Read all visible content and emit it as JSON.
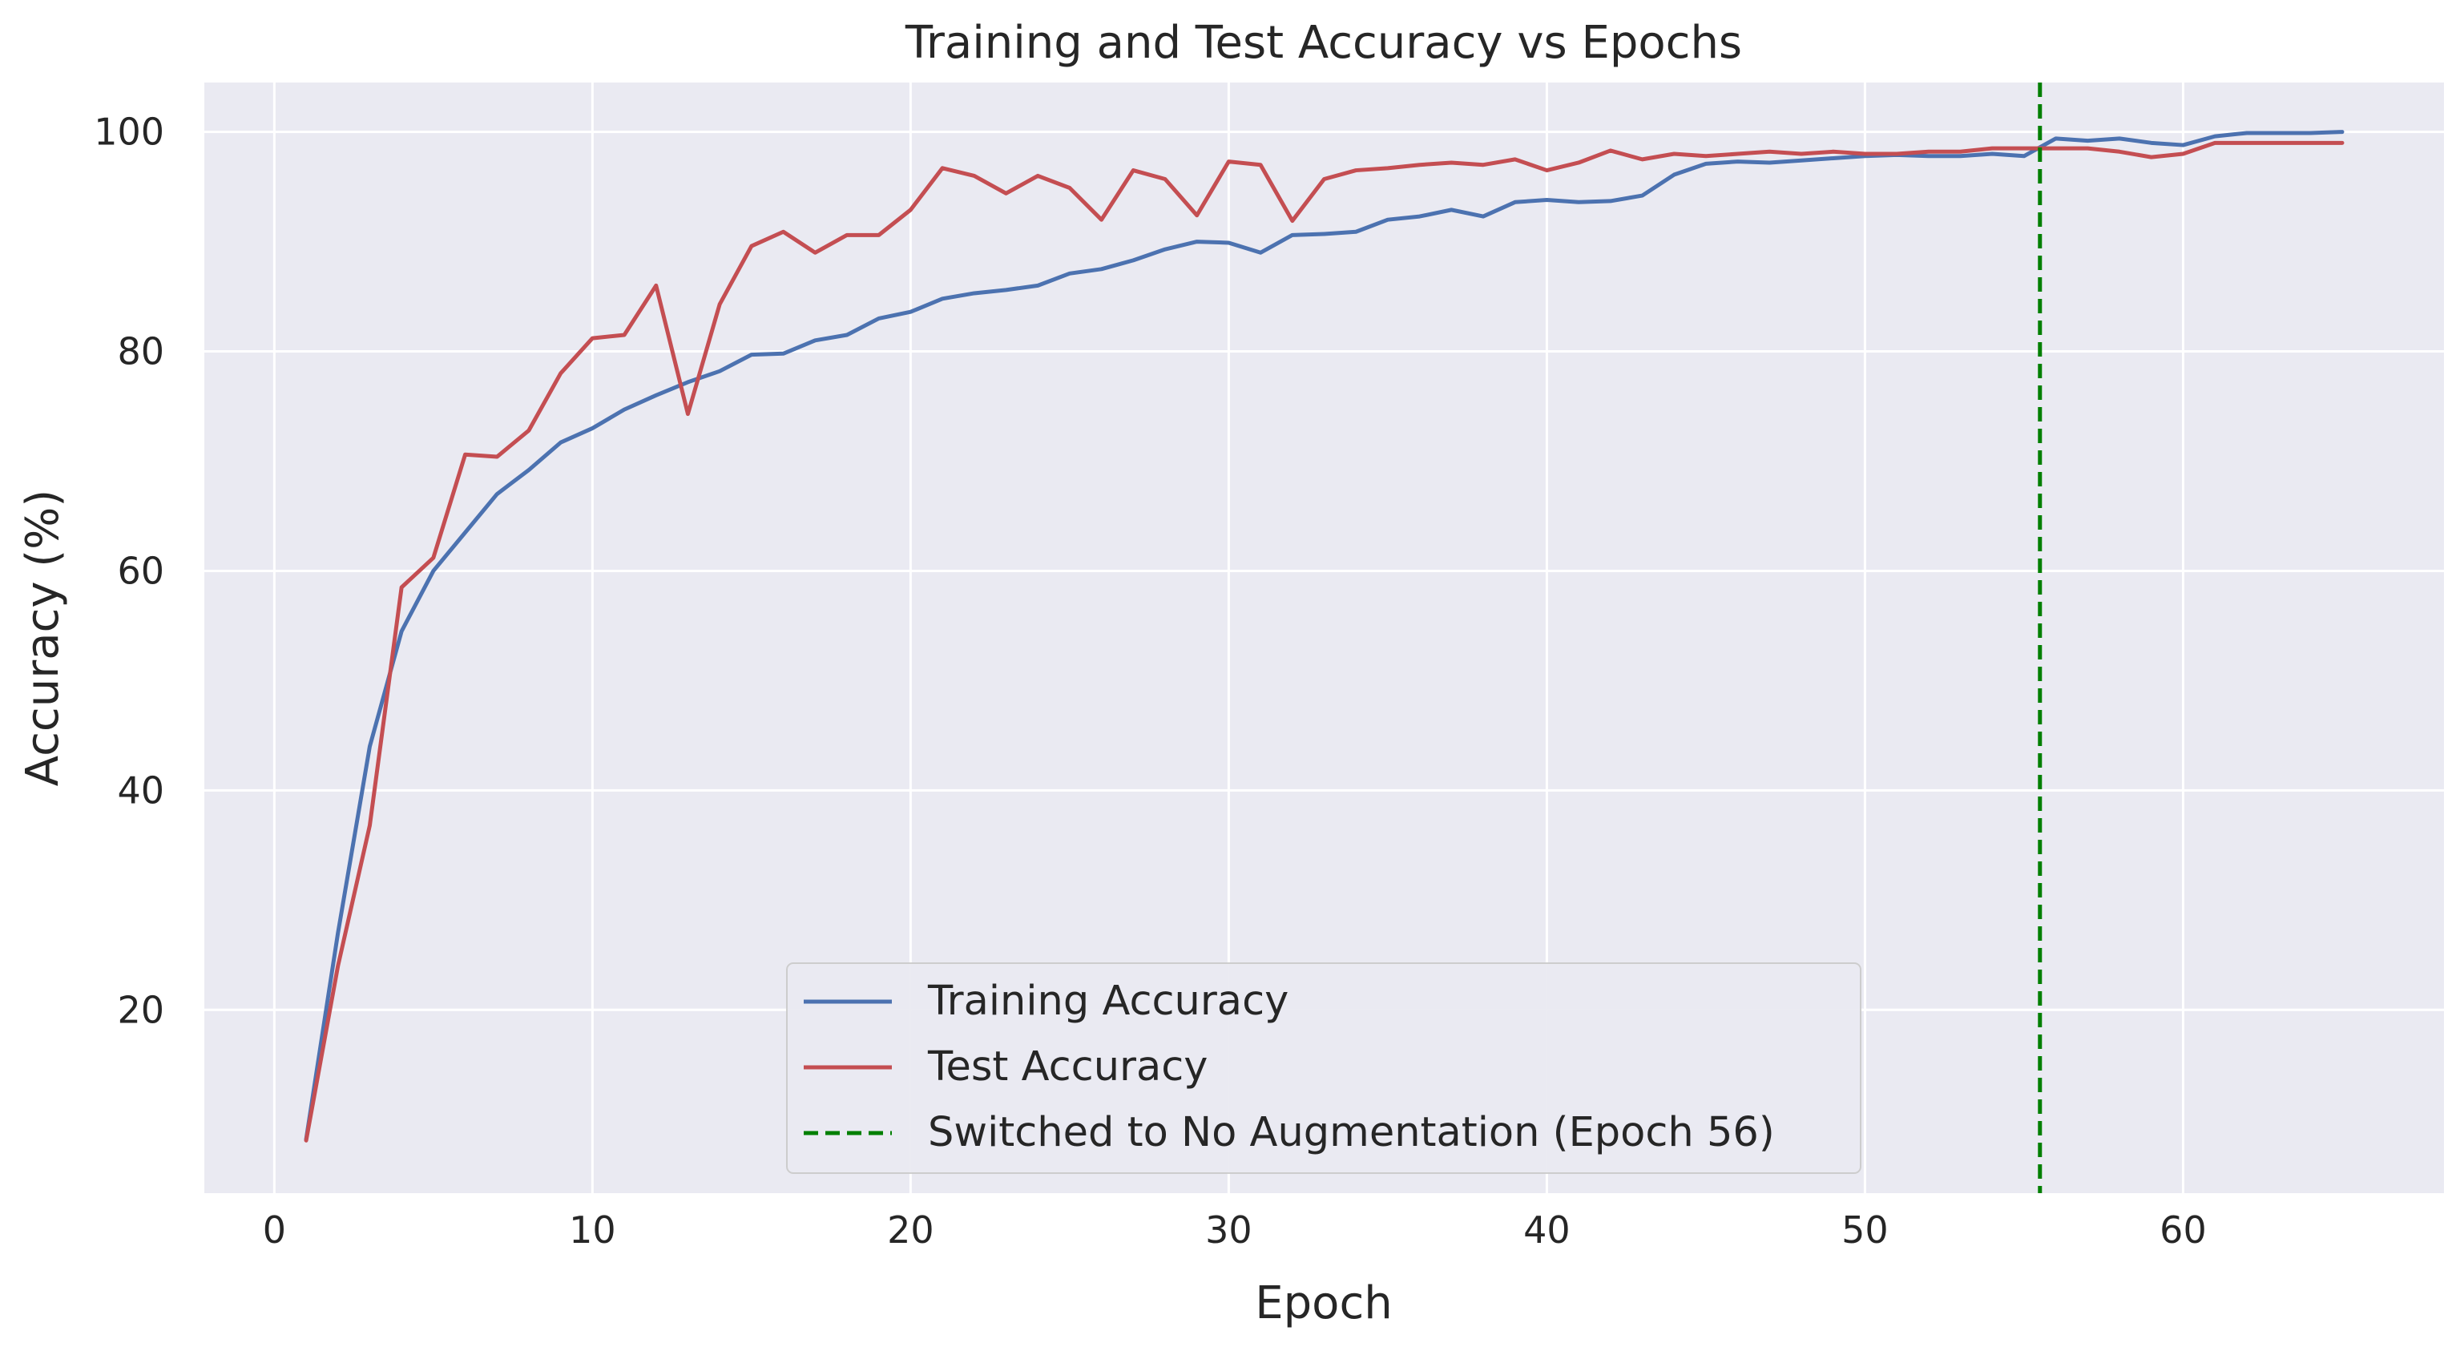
{
  "chart_data": {
    "type": "line",
    "title": "Training and Test Accuracy vs Epochs",
    "xlabel": "Epoch",
    "ylabel": "Accuracy (%)",
    "xlim": [
      -2.2,
      68.2
    ],
    "ylim": [
      3.3,
      104.5
    ],
    "xticks": [
      0,
      10,
      20,
      30,
      40,
      50,
      60
    ],
    "yticks": [
      20,
      40,
      60,
      80,
      100
    ],
    "grid": true,
    "legend_position": "lower center",
    "colors": {
      "background": "#eaeaf2",
      "grid": "#ffffff",
      "training": "#4c72b0",
      "test": "#c44e52",
      "switch": "#007f00"
    },
    "x": [
      1,
      2,
      3,
      4,
      5,
      6,
      7,
      8,
      9,
      10,
      11,
      12,
      13,
      14,
      15,
      16,
      17,
      18,
      19,
      20,
      21,
      22,
      23,
      24,
      25,
      26,
      27,
      28,
      29,
      30,
      31,
      32,
      33,
      34,
      35,
      36,
      37,
      38,
      39,
      40,
      41,
      42,
      43,
      44,
      45,
      46,
      47,
      48,
      49,
      50,
      51,
      52,
      53,
      54,
      55,
      56,
      57,
      58,
      59,
      60,
      61,
      62,
      63,
      64,
      65
    ],
    "series": [
      {
        "name": "Training Accuracy",
        "color": "#4c72b0",
        "style": "solid",
        "values": [
          8.2,
          27.0,
          44.0,
          54.5,
          60.0,
          63.5,
          67.0,
          69.2,
          71.7,
          73.0,
          74.7,
          76.0,
          77.2,
          78.2,
          79.7,
          79.8,
          81.0,
          81.5,
          83.0,
          83.6,
          84.8,
          85.3,
          85.6,
          86.0,
          87.1,
          87.5,
          88.3,
          89.3,
          90.0,
          89.9,
          89.0,
          90.6,
          90.7,
          90.9,
          92.0,
          92.3,
          92.9,
          92.3,
          93.6,
          93.8,
          93.6,
          93.7,
          94.2,
          96.1,
          97.1,
          97.3,
          97.2,
          97.4,
          97.6,
          97.8,
          97.9,
          97.8,
          97.8,
          98.0,
          97.8,
          99.4,
          99.2,
          99.4,
          99.0,
          98.8,
          99.6,
          99.9,
          99.9,
          99.9,
          100.0
        ]
      },
      {
        "name": "Test Accuracy",
        "color": "#c44e52",
        "style": "solid",
        "values": [
          8.1,
          24.0,
          36.8,
          58.5,
          61.2,
          70.6,
          70.4,
          72.8,
          78.0,
          81.2,
          81.5,
          86.0,
          74.3,
          84.3,
          89.6,
          90.9,
          89.0,
          90.6,
          90.6,
          92.9,
          96.7,
          96.0,
          94.4,
          96.0,
          94.9,
          92.0,
          96.5,
          95.7,
          92.4,
          97.3,
          97.0,
          91.9,
          95.7,
          96.5,
          96.7,
          97.0,
          97.2,
          97.0,
          97.5,
          96.5,
          97.2,
          98.3,
          97.5,
          98.0,
          97.8,
          98.0,
          98.2,
          98.0,
          98.2,
          98.0,
          98.0,
          98.2,
          98.2,
          98.5,
          98.5,
          98.5,
          98.5,
          98.2,
          97.7,
          98.0,
          99.0,
          99.0,
          99.0,
          99.0,
          99.0
        ]
      },
      {
        "name": "Switched to No Augmentation (Epoch 56)",
        "color": "#007f00",
        "style": "dashed",
        "vline_x": 55.5
      }
    ]
  }
}
